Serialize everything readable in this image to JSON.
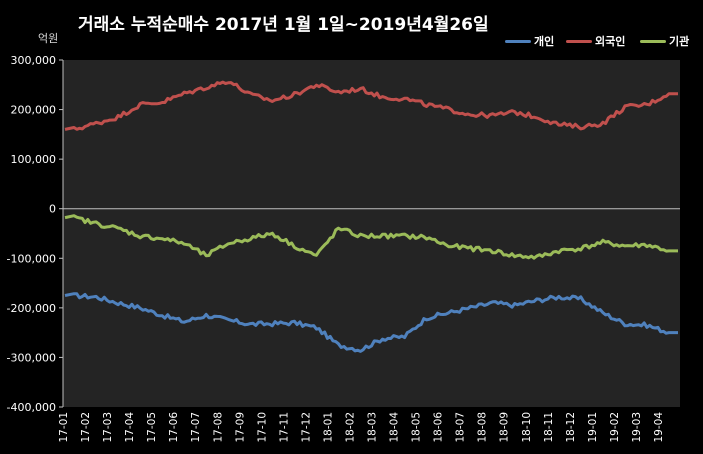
{
  "chart_data": {
    "type": "line",
    "title": "거래소  누적순매수 2017년 1월 1일~2019년4월26일",
    "ylabel": "억원",
    "ylim": [
      -400000,
      300000
    ],
    "y_ticks": [
      "300,000",
      "200,000",
      "100,000",
      "0",
      "-100,000",
      "-200,000",
      "-300,000",
      "-400,000"
    ],
    "y_tick_values": [
      300000,
      200000,
      100000,
      0,
      -100000,
      -200000,
      -300000,
      -400000
    ],
    "categories": [
      "17-01",
      "17-02",
      "17-03",
      "17-04",
      "17-05",
      "17-06",
      "17-07",
      "17-08",
      "17-09",
      "17-10",
      "17-11",
      "17-12",
      "18-01",
      "18-02",
      "18-03",
      "18-04",
      "18-05",
      "18-06",
      "18-07",
      "18-08",
      "18-09",
      "18-10",
      "18-11",
      "18-12",
      "19-01",
      "19-02",
      "19-03",
      "19-04"
    ],
    "legend_position": "top-right",
    "grid": false,
    "series": [
      {
        "name": "개인",
        "color": "#4f81bd",
        "values": [
          -175000,
          -178000,
          -190000,
          -200000,
          -215000,
          -228000,
          -215000,
          -225000,
          -233000,
          -232000,
          -230000,
          -240000,
          -275000,
          -285000,
          -262000,
          -258000,
          -220000,
          -210000,
          -200000,
          -190000,
          -195000,
          -185000,
          -178000,
          -182000,
          -210000,
          -232000,
          -235000,
          -250000
        ]
      },
      {
        "name": "외국인",
        "color": "#c0504d",
        "values": [
          160000,
          172000,
          185000,
          210000,
          215000,
          232000,
          245000,
          258000,
          230000,
          218000,
          230000,
          250000,
          235000,
          242000,
          225000,
          222000,
          210000,
          200000,
          190000,
          188000,
          195000,
          185000,
          170000,
          165000,
          172000,
          205000,
          210000,
          232000
        ]
      },
      {
        "name": "기관",
        "color": "#9bbb59",
        "values": [
          -18000,
          -30000,
          -40000,
          -55000,
          -60000,
          -70000,
          -95000,
          -70000,
          -60000,
          -50000,
          -75000,
          -95000,
          -40000,
          -55000,
          -55000,
          -55000,
          -58000,
          -75000,
          -80000,
          -85000,
          -95000,
          -98000,
          -85000,
          -80000,
          -68000,
          -75000,
          -73000,
          -85000
        ]
      }
    ]
  }
}
